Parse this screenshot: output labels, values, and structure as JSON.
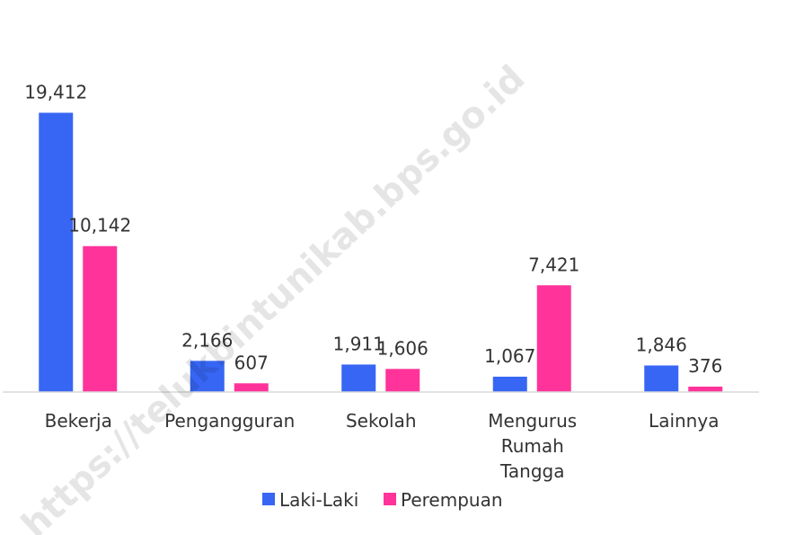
{
  "chart_data": {
    "type": "bar",
    "categories": [
      "Bekerja",
      "Pengangguran",
      "Sekolah",
      "Mengurus Rumah Tangga",
      "Lainnya"
    ],
    "series": [
      {
        "name": "Laki-Laki",
        "color": "#3766f4",
        "values": [
          19412,
          2166,
          1911,
          1067,
          1846
        ],
        "value_labels": [
          "19,412",
          "2,166",
          "1,911",
          "1,067",
          "1,846"
        ]
      },
      {
        "name": "Perempuan",
        "color": "#ff3399",
        "values": [
          10142,
          607,
          1606,
          7421,
          376
        ],
        "value_labels": [
          "10,142",
          "607",
          "1,606",
          "7,421",
          "376"
        ]
      }
    ],
    "ylim": [
      0,
      20000
    ],
    "legend": "bottom",
    "watermark": "https://telukbintunikab.bps.go.id"
  }
}
